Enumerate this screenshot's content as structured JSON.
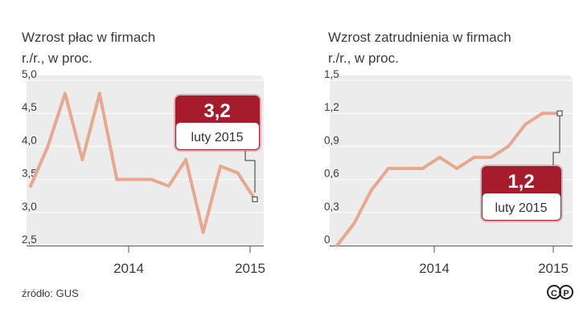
{
  "source": "źródło: GUS",
  "logo": "CP",
  "colors": {
    "line": "#e8a88e",
    "plot_bg": "#ececec",
    "callout": "#a51d2d",
    "axis": "#555555"
  },
  "chart_data": [
    {
      "type": "line",
      "title": "Wzrost płac w firmach",
      "subtitle": "r./r., w proc.",
      "ylim": [
        2.5,
        5.0
      ],
      "yticks": [
        2.5,
        3.0,
        3.5,
        4.0,
        4.5,
        5.0
      ],
      "ytick_labels": [
        "2,5",
        "3,0",
        "3,5",
        "4,0",
        "4,5",
        "5,0"
      ],
      "x_tick_labels": [
        "2014",
        "2015"
      ],
      "grid": true,
      "series": [
        {
          "values": [
            3.4,
            4.0,
            4.8,
            3.8,
            4.8,
            3.5,
            3.5,
            3.5,
            3.4,
            3.8,
            2.7,
            3.7,
            3.6,
            3.2
          ]
        }
      ],
      "annotation": {
        "value": "3,2",
        "label": "luty 2015"
      }
    },
    {
      "type": "line",
      "title": "Wzrost zatrudnienia w firmach",
      "subtitle": "r./r., w proc.",
      "ylim": [
        0,
        1.5
      ],
      "yticks": [
        0,
        0.3,
        0.6,
        0.9,
        1.2,
        1.5
      ],
      "ytick_labels": [
        "0",
        "0,3",
        "0,6",
        "0,9",
        "1,2",
        "1,5"
      ],
      "x_tick_labels": [
        "2014",
        "2015"
      ],
      "grid": true,
      "series": [
        {
          "values": [
            0.0,
            0.2,
            0.5,
            0.7,
            0.7,
            0.7,
            0.8,
            0.7,
            0.8,
            0.8,
            0.9,
            1.1,
            1.2,
            1.2
          ]
        }
      ],
      "annotation": {
        "value": "1,2",
        "label": "luty 2015"
      }
    }
  ]
}
